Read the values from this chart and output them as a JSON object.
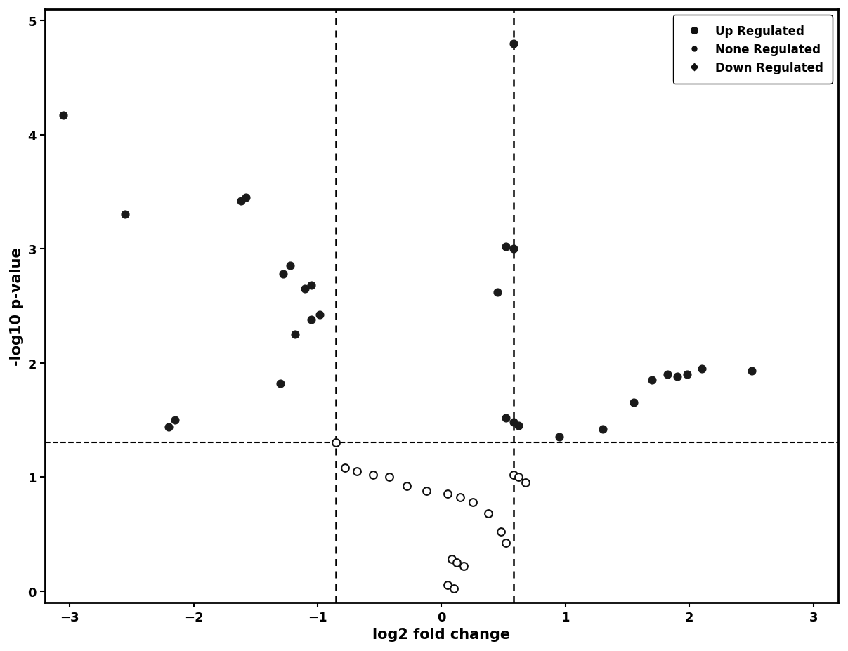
{
  "title": "",
  "xlabel": "log2 fold change",
  "ylabel": "-log10 p-value",
  "xlim": [
    -3.2,
    3.2
  ],
  "ylim": [
    -0.1,
    5.1
  ],
  "xticks": [
    -3,
    -2,
    -1,
    0,
    1,
    2,
    3
  ],
  "yticks": [
    0,
    1,
    2,
    3,
    4,
    5
  ],
  "vline1": -0.85,
  "vline2": 0.58,
  "hline": 1.3,
  "up_regulated": [
    [
      0.58,
      4.8
    ],
    [
      0.52,
      3.02
    ],
    [
      0.58,
      3.0
    ],
    [
      0.45,
      2.62
    ],
    [
      0.52,
      1.52
    ],
    [
      0.58,
      1.48
    ],
    [
      0.62,
      1.45
    ],
    [
      0.95,
      1.35
    ],
    [
      1.3,
      1.42
    ],
    [
      1.55,
      1.65
    ],
    [
      1.7,
      1.85
    ],
    [
      1.82,
      1.9
    ],
    [
      1.9,
      1.88
    ],
    [
      1.98,
      1.9
    ],
    [
      2.1,
      1.95
    ],
    [
      2.5,
      1.93
    ]
  ],
  "down_regulated": [
    [
      -3.05,
      4.17
    ],
    [
      -2.55,
      3.3
    ],
    [
      -1.58,
      3.45
    ],
    [
      -1.62,
      3.42
    ],
    [
      -2.15,
      1.5
    ],
    [
      -2.2,
      1.44
    ],
    [
      -1.22,
      2.85
    ],
    [
      -1.28,
      2.78
    ],
    [
      -1.05,
      2.68
    ],
    [
      -1.1,
      2.65
    ],
    [
      -0.98,
      2.42
    ],
    [
      -1.18,
      2.25
    ],
    [
      -1.3,
      1.82
    ],
    [
      -1.05,
      2.38
    ]
  ],
  "none_regulated": [
    [
      -0.85,
      1.3
    ],
    [
      -0.78,
      1.08
    ],
    [
      -0.68,
      1.05
    ],
    [
      -0.55,
      1.02
    ],
    [
      -0.42,
      1.0
    ],
    [
      -0.28,
      0.92
    ],
    [
      -0.12,
      0.88
    ],
    [
      0.05,
      0.85
    ],
    [
      0.15,
      0.82
    ],
    [
      0.25,
      0.78
    ],
    [
      0.38,
      0.68
    ],
    [
      0.48,
      0.52
    ],
    [
      0.52,
      0.42
    ],
    [
      0.08,
      0.28
    ],
    [
      0.12,
      0.25
    ],
    [
      0.18,
      0.22
    ],
    [
      0.05,
      0.05
    ],
    [
      0.1,
      0.02
    ],
    [
      0.58,
      1.02
    ],
    [
      0.62,
      1.0
    ],
    [
      0.68,
      0.95
    ]
  ],
  "up_color": "#1a1a1a",
  "down_color": "#1a1a1a",
  "none_color": "#ffffff",
  "marker_size": 60,
  "legend_fontsize": 12,
  "axis_fontsize": 15,
  "tick_fontsize": 13,
  "background_color": "#ffffff"
}
